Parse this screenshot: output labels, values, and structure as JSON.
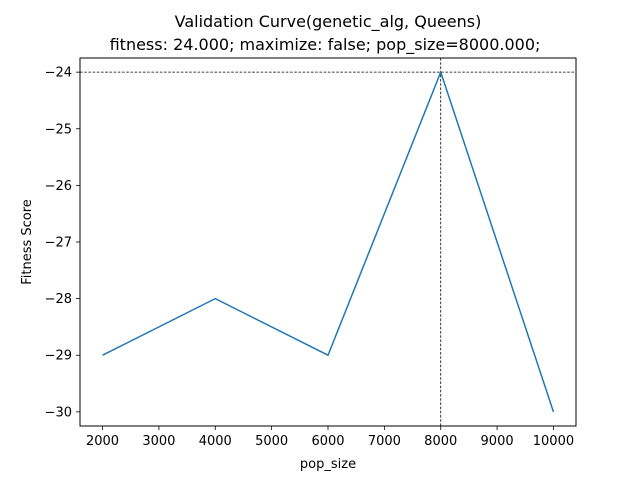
{
  "chart_data": {
    "type": "line",
    "title": "Validation Curve(genetic_alg, Queens)",
    "subtitle": "fitness: 24.000; maximize: false; pop_size=8000.000;",
    "xlabel": "pop_size",
    "ylabel": "Fitness Score",
    "x": [
      2000,
      4000,
      6000,
      8000,
      10000
    ],
    "series": [
      {
        "values": [
          -29,
          -28,
          -29,
          -24,
          -30
        ],
        "color": "#1f77b4"
      }
    ],
    "xlim": [
      1600,
      10400
    ],
    "ylim": [
      -30.25,
      -23.75
    ],
    "xticks": [
      2000,
      3000,
      4000,
      5000,
      6000,
      7000,
      8000,
      9000,
      10000
    ],
    "xtick_labels": [
      "2000",
      "3000",
      "4000",
      "5000",
      "6000",
      "7000",
      "8000",
      "9000",
      "10000"
    ],
    "yticks": [
      -24,
      -25,
      -26,
      -27,
      -28,
      -29,
      -30
    ],
    "ytick_labels": [
      "−24",
      "−25",
      "−26",
      "−27",
      "−28",
      "−29",
      "−30"
    ],
    "best_point": {
      "x": 8000,
      "y": -24
    },
    "best_marker_style": "dashed-crosshair",
    "grid": false,
    "legend": "none"
  }
}
